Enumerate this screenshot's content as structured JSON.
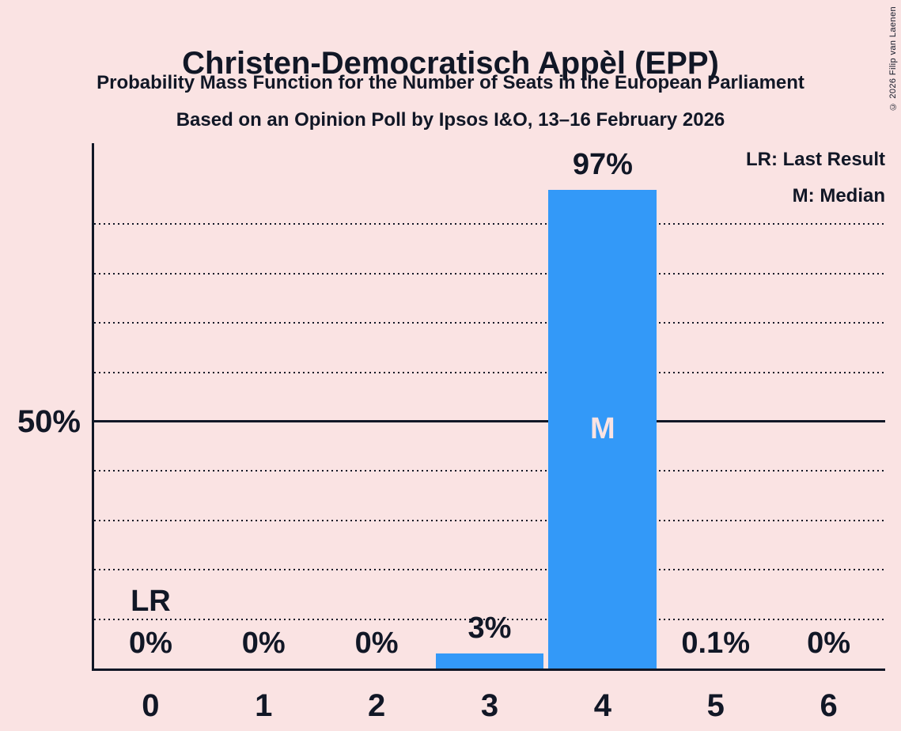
{
  "header": {
    "title": "Christen-Democratisch Appèl (EPP)",
    "subtitle": "Probability Mass Function for the Number of Seats in the European Parliament",
    "poll_line": "Based on an Opinion Poll by Ipsos I&O, 13–16 February 2026"
  },
  "copyright": "© 2026 Filip van Laenen",
  "legend": {
    "lr": "LR: Last Result",
    "m": "M: Median"
  },
  "colors": {
    "background": "#fae3e3",
    "ink": "#111726",
    "bar": "#3399f8",
    "bar_inner_label": "#fae3e3"
  },
  "chart_data": {
    "type": "bar",
    "title": "Christen-Democratisch Appèl (EPP)",
    "categories": [
      "0",
      "1",
      "2",
      "3",
      "4",
      "5",
      "6"
    ],
    "values": [
      0,
      0,
      0,
      3,
      97,
      0.1,
      0
    ],
    "value_labels": [
      "0%",
      "0%",
      "0%",
      "3%",
      "97%",
      "0.1%",
      "0%"
    ],
    "markers": [
      {
        "category": "0",
        "label": "LR",
        "meaning": "Last Result",
        "position": "above-label"
      },
      {
        "category": "4",
        "label": "M",
        "meaning": "Median",
        "position": "inside-bar"
      }
    ],
    "xlabel": "",
    "ylabel": "",
    "ylim": [
      0,
      100
    ],
    "y_tick_labels": [
      {
        "value": 50,
        "label": "50%"
      }
    ],
    "solid_line_at": 50,
    "gridlines_dotted_at": [
      10,
      20,
      30,
      40,
      60,
      70,
      80,
      90
    ],
    "grid": "horizontal dotted every 10%, solid line at 50%",
    "legend_position": "top-right",
    "bar_color": "#3399f8"
  }
}
